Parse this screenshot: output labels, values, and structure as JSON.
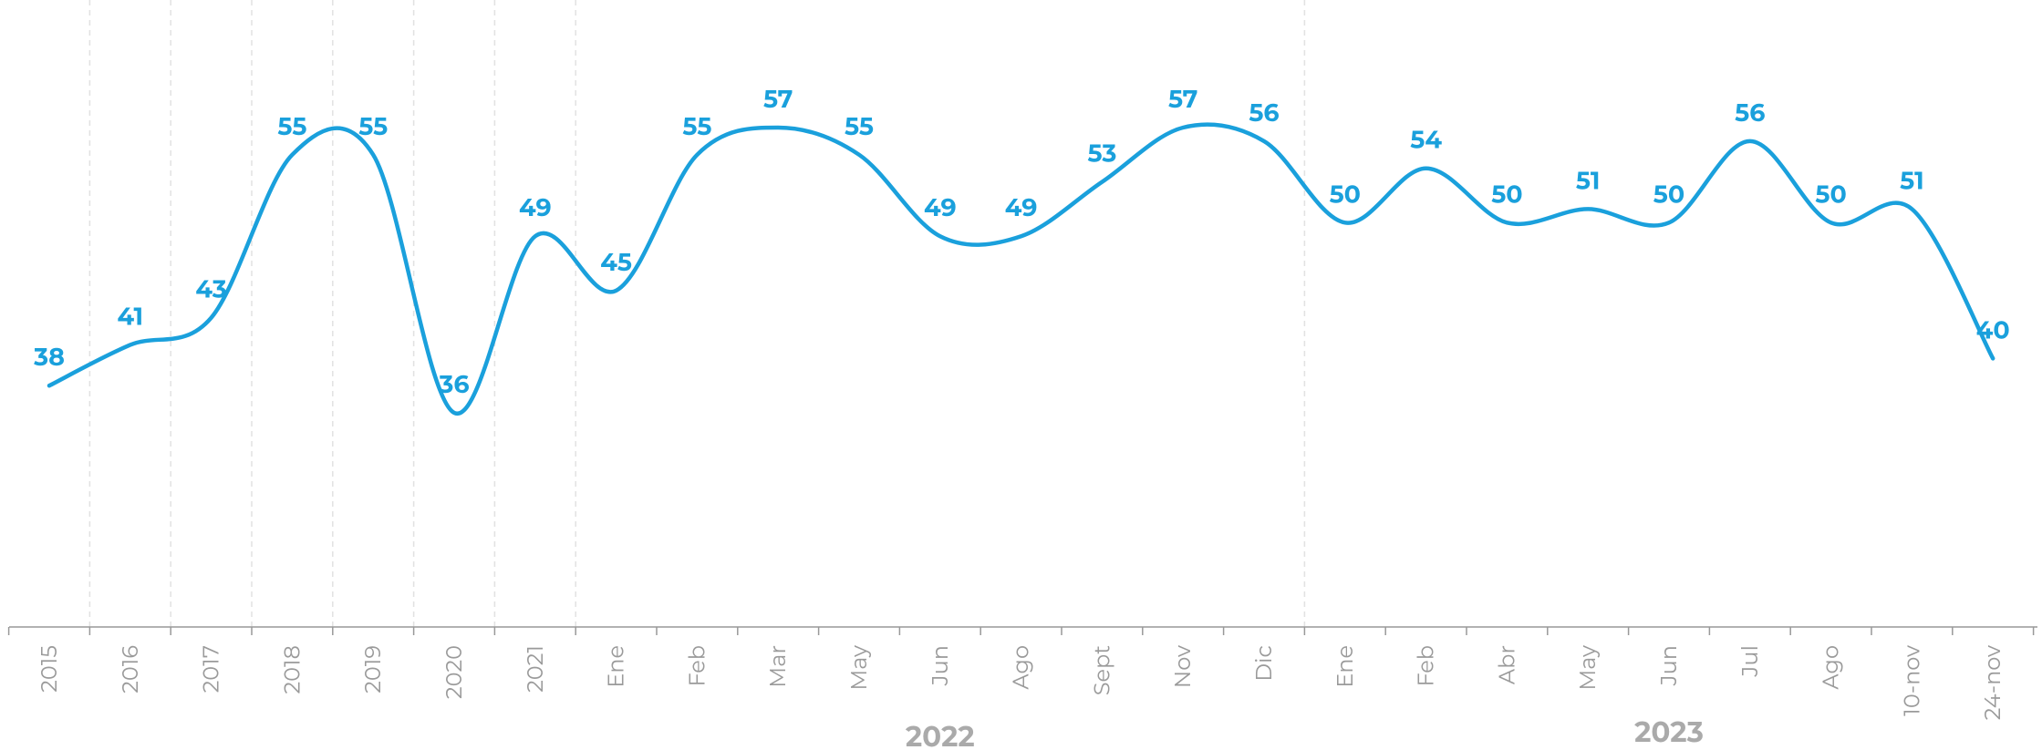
{
  "chart_data": {
    "type": "line",
    "categories": [
      "2015",
      "2016",
      "2017",
      "2018",
      "2019",
      "2020",
      "2021",
      "Ene",
      "Feb",
      "Mar",
      "May",
      "Jun",
      "Ago",
      "Sept",
      "Nov",
      "Dic",
      "Ene",
      "Feb",
      "Abr",
      "May",
      "Jun",
      "Jul",
      "Ago",
      "10-nov",
      "24-nov"
    ],
    "values": [
      38,
      41,
      43,
      55,
      55,
      36,
      49,
      45,
      55,
      57,
      55,
      49,
      49,
      53,
      57,
      56,
      50,
      54,
      50,
      51,
      50,
      56,
      50,
      51,
      40
    ],
    "color": "#1aa0dc",
    "groups": [
      "2022",
      "2023"
    ]
  }
}
